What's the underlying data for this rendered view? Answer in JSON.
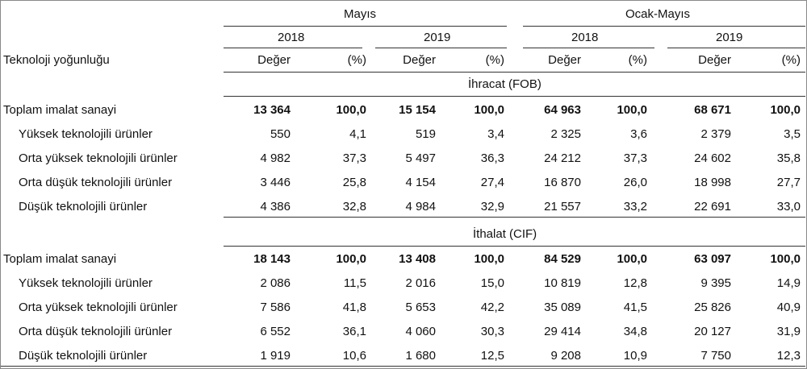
{
  "header": {
    "period_mayis": "Mayıs",
    "period_ocak_mayis": "Ocak-Mayıs",
    "years": [
      "2018",
      "2019",
      "2018",
      "2019"
    ],
    "row_label_header": "Teknoloji yoğunluğu",
    "col_labels": [
      "Değer",
      "(%)",
      "Değer",
      "(%)",
      "Değer",
      "(%)",
      "Değer",
      "(%)"
    ]
  },
  "sections": [
    {
      "title": "İhracat (FOB)",
      "rows": [
        {
          "label": "Toplam imalat sanayi",
          "values": [
            "13 364",
            "100,0",
            "15 154",
            "100,0",
            "64 963",
            "100,0",
            "68 671",
            "100,0"
          ]
        },
        {
          "label": "Yüksek teknolojili ürünler",
          "values": [
            "550",
            "4,1",
            "519",
            "3,4",
            "2 325",
            "3,6",
            "2 379",
            "3,5"
          ]
        },
        {
          "label": "Orta yüksek teknolojili ürünler",
          "values": [
            "4 982",
            "37,3",
            "5 497",
            "36,3",
            "24 212",
            "37,3",
            "24 602",
            "35,8"
          ]
        },
        {
          "label": "Orta düşük teknolojili ürünler",
          "values": [
            "3 446",
            "25,8",
            "4 154",
            "27,4",
            "16 870",
            "26,0",
            "18 998",
            "27,7"
          ]
        },
        {
          "label": "Düşük teknolojili ürünler",
          "values": [
            "4 386",
            "32,8",
            "4 984",
            "32,9",
            "21 557",
            "33,2",
            "22 691",
            "33,0"
          ]
        }
      ]
    },
    {
      "title": "İthalat (CIF)",
      "rows": [
        {
          "label": "Toplam imalat sanayi",
          "values": [
            "18 143",
            "100,0",
            "13 408",
            "100,0",
            "84 529",
            "100,0",
            "63 097",
            "100,0"
          ]
        },
        {
          "label": "Yüksek teknolojili ürünler",
          "values": [
            "2 086",
            "11,5",
            "2 016",
            "15,0",
            "10 819",
            "12,8",
            "9 395",
            "14,9"
          ]
        },
        {
          "label": "Orta yüksek teknolojili ürünler",
          "values": [
            "7 586",
            "41,8",
            "5 653",
            "42,2",
            "35 089",
            "41,5",
            "25 826",
            "40,9"
          ]
        },
        {
          "label": "Orta düşük teknolojili ürünler",
          "values": [
            "6 552",
            "36,1",
            "4 060",
            "30,3",
            "29 414",
            "34,8",
            "20 127",
            "31,9"
          ]
        },
        {
          "label": "Düşük teknolojili ürünler",
          "values": [
            "1 919",
            "10,6",
            "1 680",
            "12,5",
            "9 208",
            "10,9",
            "7 750",
            "12,3"
          ]
        }
      ]
    }
  ]
}
